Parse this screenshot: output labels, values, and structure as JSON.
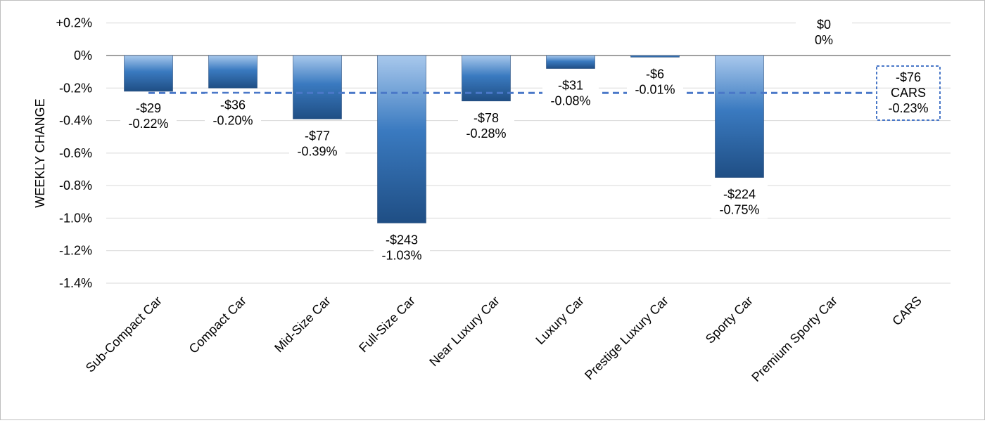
{
  "chart_data": {
    "type": "bar",
    "ylabel": "WEEKLY CHANGE",
    "ylim": [
      -1.4,
      0.2
    ],
    "yticks": [
      0.2,
      0,
      -0.2,
      -0.4,
      -0.6,
      -0.8,
      -1.0,
      -1.2,
      -1.4
    ],
    "ytick_labels": [
      "+0.2%",
      "0%",
      "-0.2%",
      "-0.4%",
      "-0.6%",
      "-0.8%",
      "-1.0%",
      "-1.2%",
      "-1.4%"
    ],
    "grid": true,
    "categories": [
      "Sub-Compact Car",
      "Compact Car",
      "Mid-Size Car",
      "Full-Size Car",
      "Near Luxury Car",
      "Luxury Car",
      "Prestige Luxury Car",
      "Sporty Car",
      "Premium Sporty Car",
      "CARS"
    ],
    "values": [
      -0.22,
      -0.2,
      -0.39,
      -1.03,
      -0.28,
      -0.08,
      -0.01,
      -0.75,
      0,
      -0.23
    ],
    "dollar_labels": [
      "-$29",
      "-$36",
      "-$77",
      "-$243",
      "-$78",
      "-$31",
      "-$6",
      "-$224",
      "$0",
      "-$76"
    ],
    "percent_labels": [
      "-0.22%",
      "-0.20%",
      "-0.39%",
      "-1.03%",
      "-0.28%",
      "-0.08%",
      "-0.01%",
      "-0.75%",
      "0%",
      "-0.23%"
    ],
    "reference_line": {
      "label": "CARS",
      "value": -0.23,
      "style": "dashed"
    },
    "colors": {
      "bar_light": "#a8c8ec",
      "bar_mid": "#3a7ac0",
      "bar_dark": "#1f4e84",
      "reference": "#4a78c8",
      "grid": "#d9d9d9",
      "axis": "#808080"
    }
  }
}
